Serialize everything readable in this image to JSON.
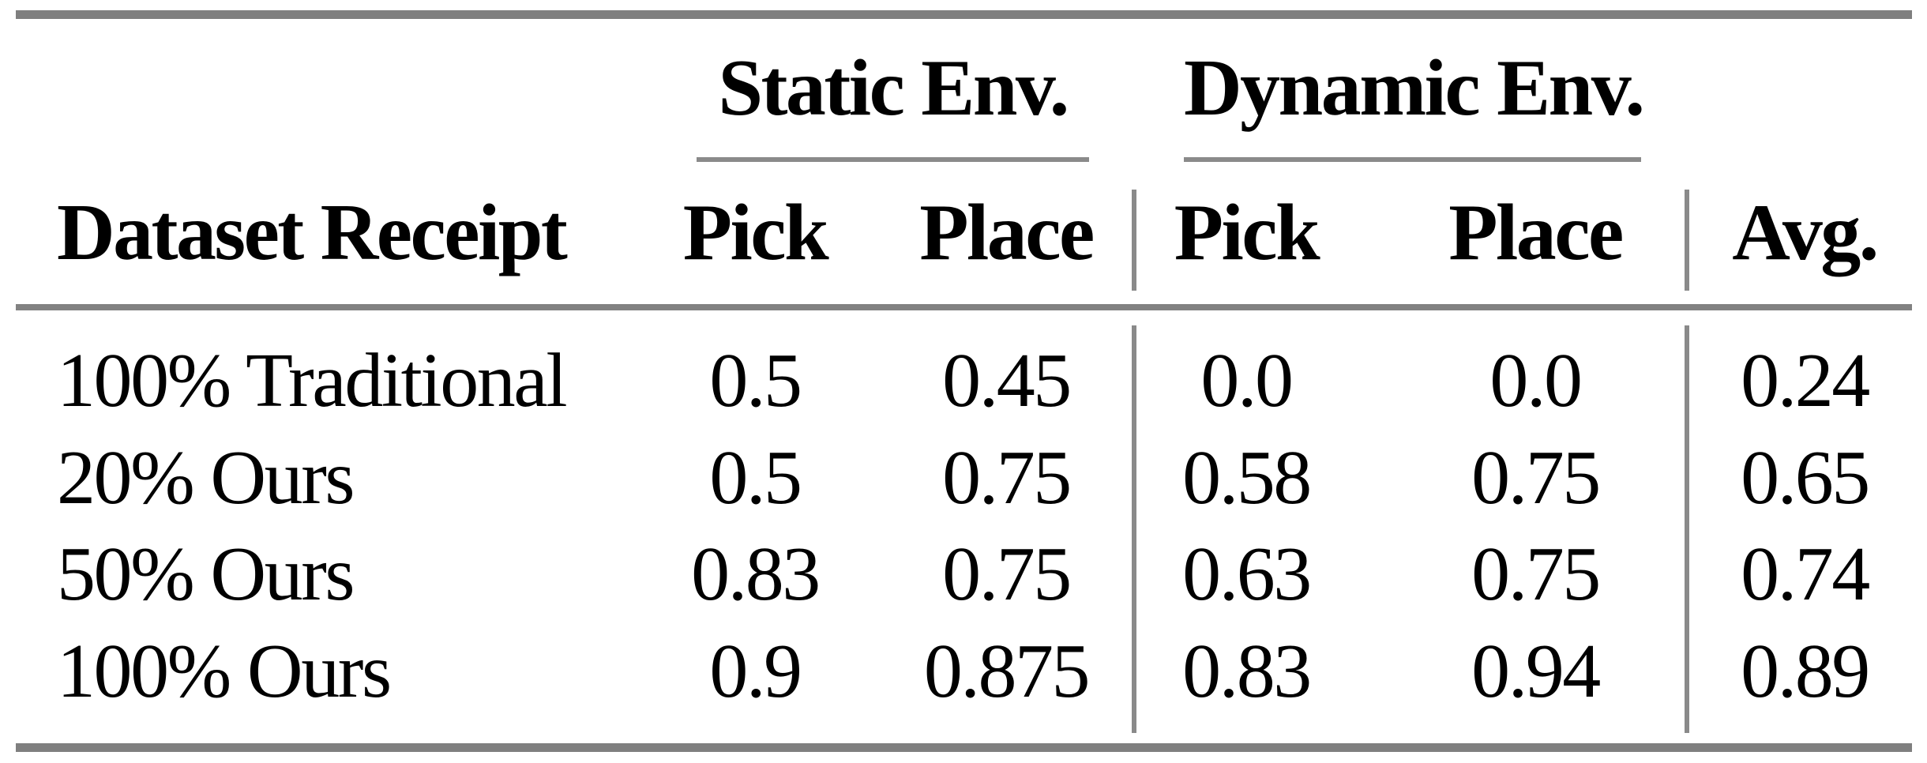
{
  "table": {
    "col_groups": [
      {
        "label": "Static Env."
      },
      {
        "label": "Dynamic Env."
      }
    ],
    "row_header_label": "Dataset Receipt",
    "sub_headers": {
      "static_pick": "Pick",
      "static_place": "Place",
      "dynamic_pick": "Pick",
      "dynamic_place": "Place",
      "avg": "Avg."
    },
    "rows": [
      {
        "label": "100% Traditional",
        "static_pick": "0.5",
        "static_place": "0.45",
        "dynamic_pick": "0.0",
        "dynamic_place": "0.0",
        "avg": "0.24"
      },
      {
        "label": "20% Ours",
        "static_pick": "0.5",
        "static_place": "0.75",
        "dynamic_pick": "0.58",
        "dynamic_place": "0.75",
        "avg": "0.65"
      },
      {
        "label": "50% Ours",
        "static_pick": "0.83",
        "static_place": "0.75",
        "dynamic_pick": "0.63",
        "dynamic_place": "0.75",
        "avg": "0.74"
      },
      {
        "label": "100% Ours",
        "static_pick": "0.9",
        "static_place": "0.875",
        "dynamic_pick": "0.83",
        "dynamic_place": "0.94",
        "avg": "0.89"
      }
    ],
    "colors": {
      "rule_gray": "#7f7f7f",
      "light_rule_gray": "#8a8a8a",
      "text": "#000000",
      "background": "#ffffff"
    }
  },
  "chart_data": {
    "type": "table",
    "columns": [
      "Dataset Receipt",
      "Static Env. Pick",
      "Static Env. Place",
      "Dynamic Env. Pick",
      "Dynamic Env. Place",
      "Avg."
    ],
    "rows": [
      [
        "100% Traditional",
        0.5,
        0.45,
        0.0,
        0.0,
        0.24
      ],
      [
        "20% Ours",
        0.5,
        0.75,
        0.58,
        0.75,
        0.65
      ],
      [
        "50% Ours",
        0.83,
        0.75,
        0.63,
        0.75,
        0.74
      ],
      [
        "100% Ours",
        0.9,
        0.875,
        0.83,
        0.94,
        0.89
      ]
    ]
  }
}
